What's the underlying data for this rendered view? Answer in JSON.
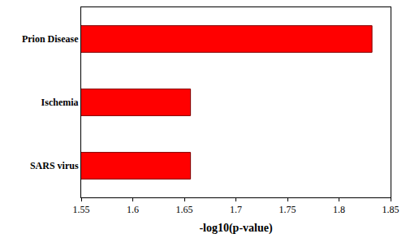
{
  "chart_data": {
    "type": "bar",
    "orientation": "horizontal",
    "categories": [
      "Prion Disease",
      "Ischemia",
      "SARS virus"
    ],
    "values": [
      1.832,
      1.656,
      1.656
    ],
    "color": "#ff0000",
    "x_label": "-log10(p-value)",
    "xlim": [
      1.55,
      1.85
    ],
    "xticks": [
      1.55,
      1.6,
      1.65,
      1.7,
      1.75,
      1.8,
      1.85
    ],
    "grid": false
  }
}
